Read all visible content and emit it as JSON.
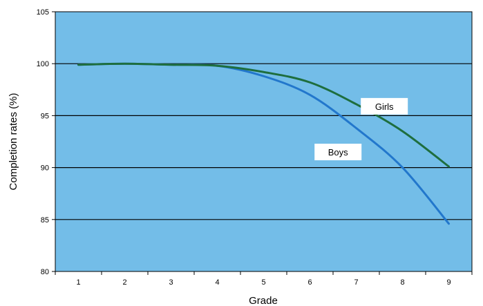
{
  "chart_data": {
    "type": "line",
    "title": "",
    "xlabel": "Grade",
    "ylabel": "Completion rates (%)",
    "x": [
      1,
      2,
      3,
      4,
      5,
      6,
      7,
      8,
      9
    ],
    "x_tick_labels": [
      "1",
      "2",
      "3",
      "4",
      "5",
      "6",
      "7",
      "8",
      "9"
    ],
    "xlim": [
      0.5,
      9.5
    ],
    "ylim": [
      80,
      105
    ],
    "y_ticks": [
      80,
      85,
      90,
      95,
      100,
      105
    ],
    "y_tick_labels": [
      "80",
      "85",
      "90",
      "95",
      "100",
      "105"
    ],
    "grid": true,
    "legend": "none",
    "plot_background": "#73bde8",
    "series": [
      {
        "name": "Girls",
        "color": "#1e6e3e",
        "values": [
          99.9,
          100.0,
          99.9,
          99.8,
          99.2,
          98.2,
          96.1,
          93.5,
          90.1
        ]
      },
      {
        "name": "Boys",
        "color": "#2277cc",
        "values": [
          99.9,
          100.0,
          99.9,
          99.8,
          98.8,
          97.0,
          93.8,
          90.0,
          84.6
        ]
      }
    ]
  }
}
